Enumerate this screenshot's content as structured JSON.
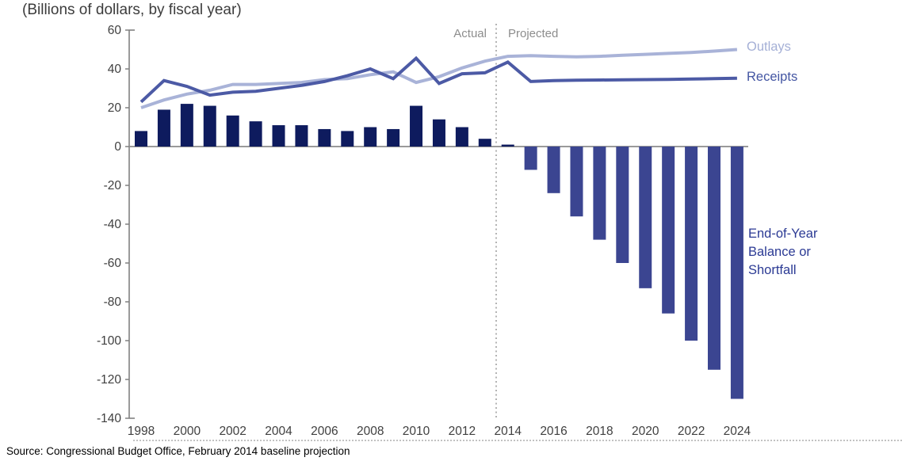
{
  "title": "(Billions of dollars, by fiscal year)",
  "labels": {
    "actual": "Actual",
    "projected": "Projected",
    "outlays": "Outlays",
    "receipts": "Receipts",
    "balance": "End-of-Year Balance or Shortfall"
  },
  "source": "Source: Congressional Budget Office, February 2014 baseline projection",
  "chart_data": {
    "type": "combo",
    "title": "(Billions of dollars, by fiscal year)",
    "x": [
      1998,
      1999,
      2000,
      2001,
      2002,
      2003,
      2004,
      2005,
      2006,
      2007,
      2008,
      2009,
      2010,
      2011,
      2012,
      2013,
      2014,
      2015,
      2016,
      2017,
      2018,
      2019,
      2020,
      2021,
      2022,
      2023,
      2024
    ],
    "series": [
      {
        "name": "Outlays",
        "type": "line",
        "values": [
          20,
          24,
          27,
          29,
          32,
          32,
          32.5,
          33,
          34.5,
          35,
          37,
          38.5,
          33,
          36,
          40.5,
          44,
          46.5,
          46.8,
          46.5,
          46.2,
          46.5,
          47,
          47.5,
          48,
          48.5,
          49.2,
          50
        ]
      },
      {
        "name": "Receipts",
        "type": "line",
        "values": [
          23,
          34,
          31,
          26.5,
          28,
          28.5,
          30,
          31.5,
          33.5,
          36.5,
          40,
          35,
          45.5,
          32.5,
          37.5,
          38,
          43.5,
          33.5,
          34,
          34.2,
          34.3,
          34.4,
          34.5,
          34.6,
          34.8,
          35,
          35.2
        ]
      },
      {
        "name": "End-of-Year Balance or Shortfall",
        "type": "bar",
        "values": [
          8,
          19,
          22,
          21,
          16,
          13,
          11,
          11,
          9,
          8,
          10,
          9,
          21,
          14,
          10,
          4,
          1,
          -12,
          -24,
          -36,
          -48,
          -60,
          -73,
          -86,
          -100,
          -115,
          -130
        ]
      }
    ],
    "x_tick_labels": [
      "1998",
      "2000",
      "2002",
      "2004",
      "2006",
      "2008",
      "2010",
      "2012",
      "2014",
      "2016",
      "2018",
      "2020",
      "2022",
      "2024"
    ],
    "y_ticks": [
      60,
      40,
      20,
      0,
      -20,
      -40,
      -60,
      -80,
      -100,
      -120,
      -140
    ],
    "ylim": [
      -140,
      60
    ],
    "actual_through": 2013,
    "divider_between": [
      2013,
      2014
    ],
    "grid": false,
    "legend_position": "right-of-line-ends",
    "colors": {
      "actual_bar": "#0e1b5e",
      "projected_bar": "#3b4591",
      "outlays_line": "#a9b3d8",
      "receipts_line": "#4c5aa5",
      "axis": "#808080",
      "zero_line": "#8c8c8c",
      "divider": "#9a9a9a",
      "tick_text": "#404040"
    }
  }
}
